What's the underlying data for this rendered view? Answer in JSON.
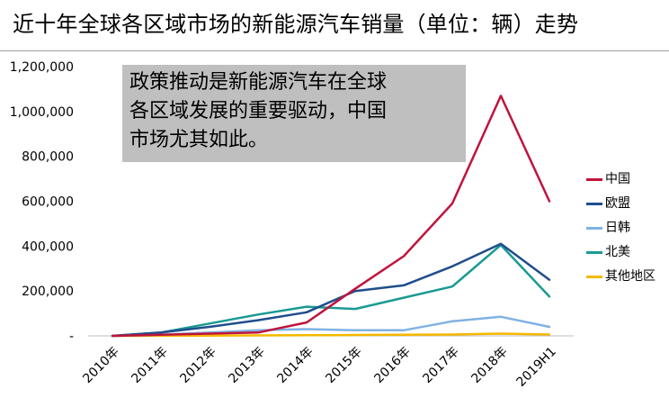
{
  "header": {
    "title": "近十年全球各区域市场的新能源汽车销量（单位：辆）走势"
  },
  "annotation": {
    "lines": [
      "政策推动是新能源汽车在全球",
      "各区域发展的重要驱动，中国",
      "市场尤其如此。"
    ]
  },
  "chart_data": {
    "type": "line",
    "title": "近十年全球各区域市场的新能源汽车销量（单位：辆）走势",
    "xlabel": "",
    "ylabel": "",
    "categories": [
      "2010年",
      "2011年",
      "2012年",
      "2013年",
      "2014年",
      "2015年",
      "2016年",
      "2017年",
      "2018年",
      "2019H1"
    ],
    "ylim": [
      0,
      1200000
    ],
    "yticks": [
      0,
      200000,
      400000,
      600000,
      800000,
      1000000,
      1200000
    ],
    "ytick_labels": [
      "-",
      "200,000",
      "400,000",
      "600,000",
      "800,000",
      "1,000,000",
      "1,200,000"
    ],
    "grid": false,
    "legend_position": "right",
    "series": [
      {
        "name": "中国",
        "color": "#c0143c",
        "values": [
          0,
          5000,
          10000,
          15000,
          60000,
          210000,
          355000,
          590000,
          1070000,
          600000
        ]
      },
      {
        "name": "欧盟",
        "color": "#1f4e8c",
        "values": [
          0,
          15000,
          40000,
          70000,
          105000,
          200000,
          225000,
          310000,
          410000,
          250000
        ]
      },
      {
        "name": "日韩",
        "color": "#7fb2e3",
        "values": [
          0,
          5000,
          15000,
          25000,
          30000,
          25000,
          25000,
          65000,
          85000,
          40000
        ]
      },
      {
        "name": "北美",
        "color": "#1a9a93",
        "values": [
          0,
          15000,
          55000,
          95000,
          130000,
          120000,
          170000,
          220000,
          405000,
          175000
        ]
      },
      {
        "name": "其他地区",
        "color": "#f5b800",
        "values": [
          0,
          500,
          1000,
          2000,
          3000,
          4000,
          5000,
          6000,
          10000,
          6000
        ]
      }
    ]
  }
}
